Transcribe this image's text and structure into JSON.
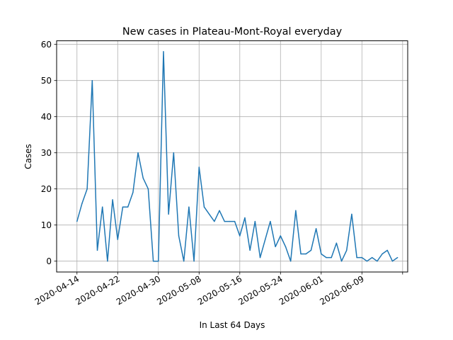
{
  "chart_data": {
    "type": "line",
    "title": "New cases in Plateau-Mont-Royal everyday",
    "xlabel": "In Last 64 Days",
    "ylabel": "Cases",
    "x_start": "2020-04-14",
    "x_tick_labels": [
      "2020-04-14",
      "2020-04-22",
      "2020-04-30",
      "2020-05-08",
      "2020-05-16",
      "2020-05-24",
      "2020-06-01",
      "2020-06-09",
      ""
    ],
    "x_ticks": [
      "2020-04-14",
      "2020-04-22",
      "2020-04-30",
      "2020-05-08",
      "2020-05-16",
      "2020-05-24",
      "2020-06-01",
      "2020-06-09",
      "2020-06-17"
    ],
    "y_ticks": [
      0,
      10,
      20,
      30,
      40,
      50,
      60
    ],
    "xlim": [
      "2020-04-10",
      "2020-06-18"
    ],
    "ylim": [
      -3,
      61
    ],
    "grid": true,
    "color": "#1f77b4",
    "series": [
      {
        "x": [
          "2020-04-14",
          "2020-04-15",
          "2020-04-16",
          "2020-04-17",
          "2020-04-18",
          "2020-04-19",
          "2020-04-20",
          "2020-04-21",
          "2020-04-22",
          "2020-04-23",
          "2020-04-24",
          "2020-04-25",
          "2020-04-26",
          "2020-04-27",
          "2020-04-28",
          "2020-04-29",
          "2020-04-30",
          "2020-05-01",
          "2020-05-02",
          "2020-05-03",
          "2020-05-04",
          "2020-05-05",
          "2020-05-06",
          "2020-05-07",
          "2020-05-08",
          "2020-05-09",
          "2020-05-10",
          "2020-05-11",
          "2020-05-12",
          "2020-05-13",
          "2020-05-14",
          "2020-05-15",
          "2020-05-16",
          "2020-05-17",
          "2020-05-18",
          "2020-05-19",
          "2020-05-20",
          "2020-05-21",
          "2020-05-22",
          "2020-05-23",
          "2020-05-24",
          "2020-05-25",
          "2020-05-26",
          "2020-05-27",
          "2020-05-28",
          "2020-05-29",
          "2020-05-30",
          "2020-05-31",
          "2020-06-01",
          "2020-06-02",
          "2020-06-03",
          "2020-06-04",
          "2020-06-05",
          "2020-06-06",
          "2020-06-07",
          "2020-06-08",
          "2020-06-09",
          "2020-06-10",
          "2020-06-11",
          "2020-06-12",
          "2020-06-13",
          "2020-06-14",
          "2020-06-15",
          "2020-06-16"
        ],
        "values": [
          11,
          16,
          20,
          50,
          3,
          15,
          0,
          17,
          6,
          15,
          15,
          19,
          30,
          23,
          20,
          0,
          0,
          58,
          13,
          30,
          7,
          0,
          15,
          0,
          26,
          15,
          13,
          11,
          14,
          11,
          11,
          11,
          7,
          12,
          3,
          11,
          1,
          6,
          11,
          4,
          7,
          4,
          0,
          14,
          2,
          2,
          3,
          9,
          2,
          1,
          1,
          5,
          0,
          3,
          13,
          1,
          1,
          0,
          1,
          0,
          2,
          3,
          0,
          1
        ]
      }
    ]
  }
}
